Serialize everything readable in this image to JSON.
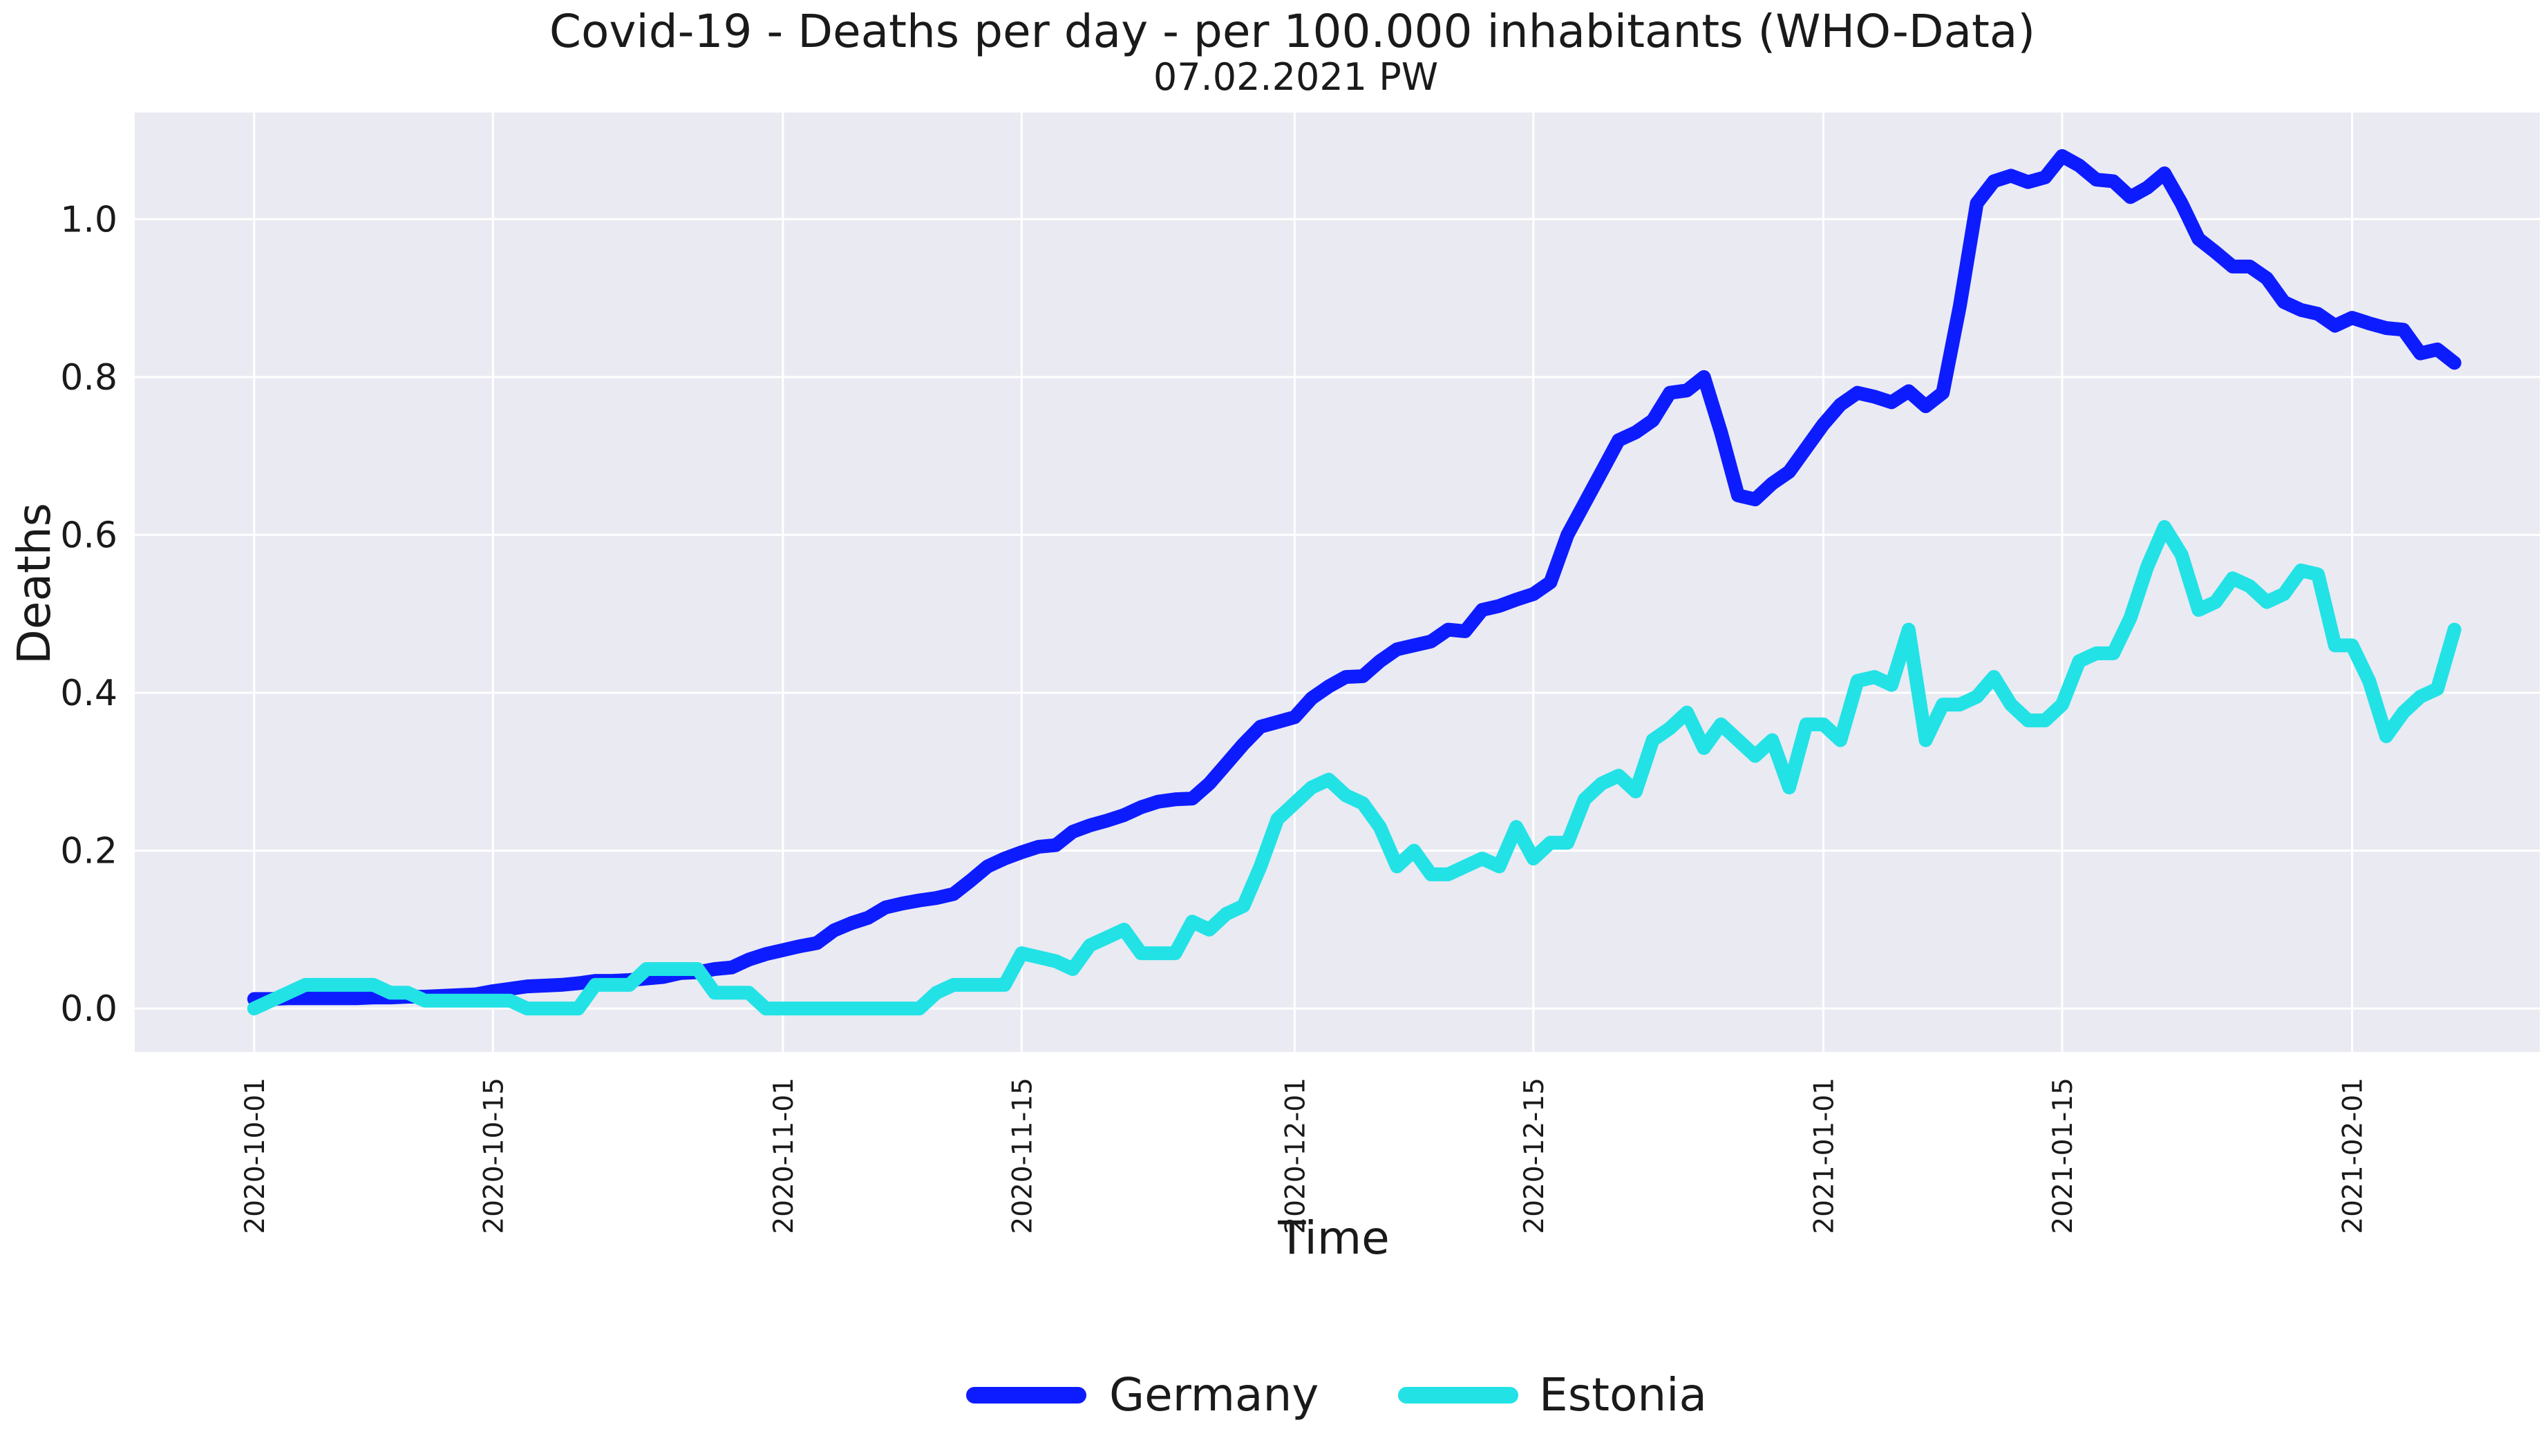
{
  "chart_data": {
    "type": "line",
    "title": "Covid-19 - Deaths per day - per 100.000 inhabitants (WHO-Data)",
    "subtitle": "07.02.2021 PW",
    "xlabel": "Time",
    "ylabel": "Deaths",
    "x_start": "2020-10-01",
    "x_end": "2021-02-06",
    "x_ticks": [
      "2020-10-01",
      "2020-10-15",
      "2020-11-01",
      "2020-11-15",
      "2020-12-01",
      "2020-12-15",
      "2021-01-01",
      "2021-01-15",
      "2021-02-01"
    ],
    "y_ticks": [
      "0.0",
      "0.2",
      "0.4",
      "0.6",
      "0.8",
      "1.0"
    ],
    "ylim": [
      -0.055,
      1.135
    ],
    "xlim": [
      "2020-09-24",
      "2021-02-12"
    ],
    "grid": true,
    "legend_position": "bottom-center",
    "series": [
      {
        "name": "Germany",
        "color": "#0d1cff",
        "values": [
          0.012,
          0.012,
          0.013,
          0.013,
          0.013,
          0.013,
          0.013,
          0.014,
          0.014,
          0.015,
          0.015,
          0.016,
          0.017,
          0.018,
          0.022,
          0.025,
          0.028,
          0.029,
          0.03,
          0.032,
          0.035,
          0.035,
          0.036,
          0.038,
          0.04,
          0.045,
          0.046,
          0.05,
          0.052,
          0.062,
          0.069,
          0.074,
          0.079,
          0.083,
          0.099,
          0.108,
          0.115,
          0.128,
          0.133,
          0.137,
          0.14,
          0.145,
          0.162,
          0.18,
          0.19,
          0.198,
          0.205,
          0.207,
          0.224,
          0.232,
          0.238,
          0.245,
          0.255,
          0.262,
          0.265,
          0.266,
          0.285,
          0.31,
          0.335,
          0.357,
          0.363,
          0.369,
          0.393,
          0.408,
          0.42,
          0.421,
          0.44,
          0.455,
          0.46,
          0.465,
          0.48,
          0.478,
          0.505,
          0.51,
          0.518,
          0.525,
          0.54,
          0.6,
          0.64,
          0.68,
          0.72,
          0.73,
          0.745,
          0.78,
          0.783,
          0.8,
          0.73,
          0.65,
          0.645,
          0.665,
          0.68,
          0.71,
          0.74,
          0.765,
          0.78,
          0.775,
          0.768,
          0.782,
          0.763,
          0.78,
          0.89,
          1.02,
          1.048,
          1.055,
          1.047,
          1.053,
          1.08,
          1.068,
          1.05,
          1.048,
          1.028,
          1.04,
          1.058,
          1.02,
          0.975,
          0.958,
          0.94,
          0.94,
          0.925,
          0.895,
          0.885,
          0.88,
          0.865,
          0.875,
          0.868,
          0.862,
          0.86,
          0.83,
          0.835,
          0.818
        ]
      },
      {
        "name": "Estonia",
        "color": "#22e2e6",
        "values": [
          0.0,
          0.01,
          0.02,
          0.03,
          0.03,
          0.03,
          0.03,
          0.03,
          0.02,
          0.02,
          0.01,
          0.01,
          0.01,
          0.01,
          0.01,
          0.01,
          0.0,
          0.0,
          0.0,
          0.0,
          0.03,
          0.03,
          0.03,
          0.05,
          0.05,
          0.05,
          0.05,
          0.02,
          0.02,
          0.02,
          0.0,
          0.0,
          0.0,
          0.0,
          0.0,
          0.0,
          0.0,
          0.0,
          0.0,
          0.0,
          0.02,
          0.03,
          0.03,
          0.03,
          0.03,
          0.07,
          0.065,
          0.06,
          0.05,
          0.08,
          0.09,
          0.1,
          0.07,
          0.07,
          0.07,
          0.11,
          0.1,
          0.12,
          0.13,
          0.18,
          0.24,
          0.26,
          0.28,
          0.29,
          0.27,
          0.26,
          0.23,
          0.18,
          0.2,
          0.17,
          0.17,
          0.18,
          0.19,
          0.18,
          0.23,
          0.19,
          0.21,
          0.21,
          0.265,
          0.285,
          0.295,
          0.275,
          0.34,
          0.355,
          0.375,
          0.33,
          0.36,
          0.34,
          0.32,
          0.34,
          0.28,
          0.36,
          0.36,
          0.34,
          0.415,
          0.42,
          0.41,
          0.48,
          0.34,
          0.385,
          0.385,
          0.395,
          0.42,
          0.385,
          0.365,
          0.365,
          0.385,
          0.44,
          0.45,
          0.45,
          0.495,
          0.56,
          0.61,
          0.575,
          0.505,
          0.515,
          0.545,
          0.535,
          0.515,
          0.525,
          0.555,
          0.55,
          0.46,
          0.46,
          0.415,
          0.345,
          0.375,
          0.395,
          0.405,
          0.48
        ]
      }
    ]
  }
}
